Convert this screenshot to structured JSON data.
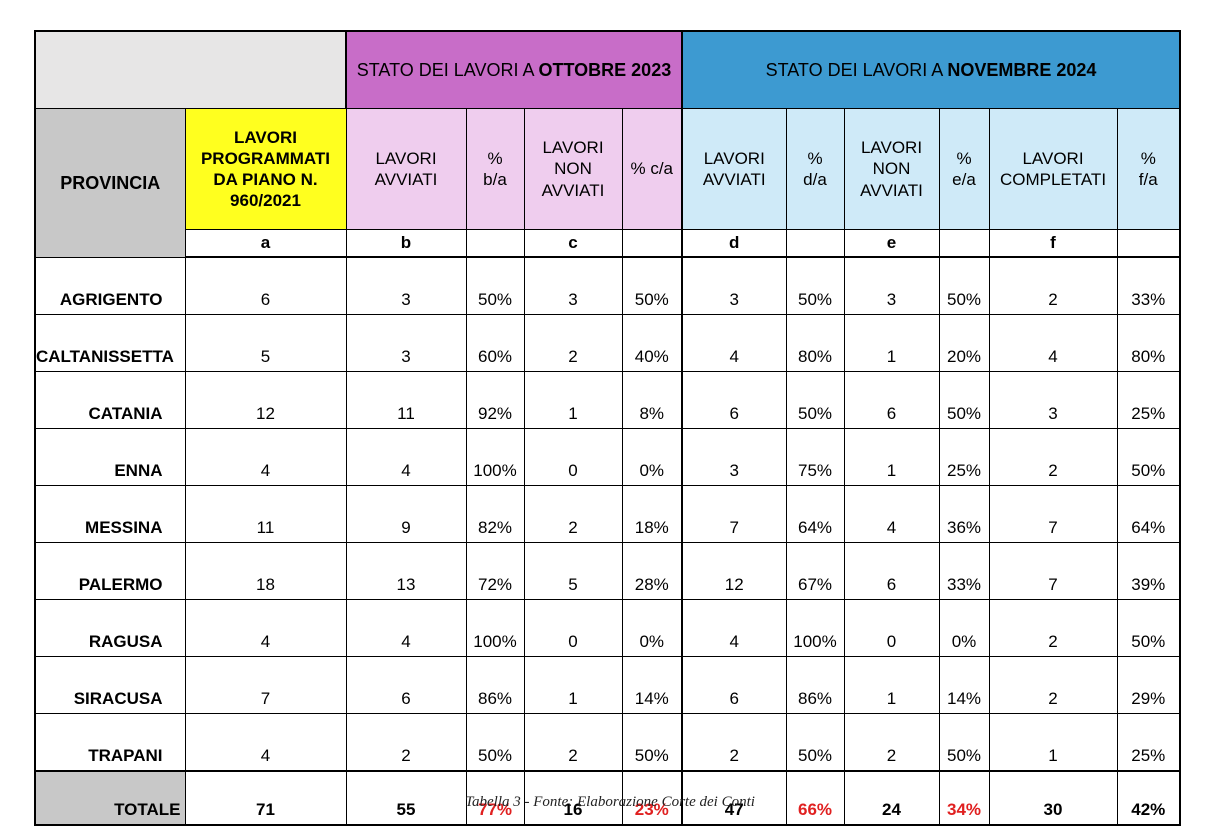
{
  "header": {
    "oct_prefix": "STATO DEI LAVORI A ",
    "oct_bold": "OTTOBRE 2023",
    "nov_prefix": "STATO DEI LAVORI A ",
    "nov_bold": "NOVEMBRE 2024"
  },
  "columns": {
    "provincia": "PROVINCIA",
    "lavori_programmati": [
      "LAVORI",
      "PROGRAMMATI",
      "DA PIANO N.",
      "960/2021"
    ],
    "oct_avviati": [
      "LAVORI",
      "AVVIATI"
    ],
    "oct_pct_ba": [
      "%",
      "b/a"
    ],
    "oct_non_avviati": [
      "LAVORI",
      "NON",
      "AVVIATI"
    ],
    "oct_pct_ca": "% c/a",
    "nov_avviati": [
      "LAVORI",
      "AVVIATI"
    ],
    "nov_pct_da": [
      "%",
      "d/a"
    ],
    "nov_non_avviati": [
      "LAVORI",
      "NON",
      "AVVIATI"
    ],
    "nov_pct_ea": [
      "%",
      "e/a"
    ],
    "nov_completati": [
      "LAVORI",
      "COMPLETATI"
    ],
    "nov_pct_fa": [
      "%",
      "f/a"
    ]
  },
  "letters": [
    "a",
    "b",
    "c",
    "d",
    "e",
    "f"
  ],
  "rows": [
    [
      "AGRIGENTO",
      "6",
      "3",
      "50%",
      "3",
      "50%",
      "3",
      "50%",
      "3",
      "50%",
      "2",
      "33%"
    ],
    [
      "CALTANISSETTA",
      "5",
      "3",
      "60%",
      "2",
      "40%",
      "4",
      "80%",
      "1",
      "20%",
      "4",
      "80%"
    ],
    [
      "CATANIA",
      "12",
      "11",
      "92%",
      "1",
      "8%",
      "6",
      "50%",
      "6",
      "50%",
      "3",
      "25%"
    ],
    [
      "ENNA",
      "4",
      "4",
      "100%",
      "0",
      "0%",
      "3",
      "75%",
      "1",
      "25%",
      "2",
      "50%"
    ],
    [
      "MESSINA",
      "11",
      "9",
      "82%",
      "2",
      "18%",
      "7",
      "64%",
      "4",
      "36%",
      "7",
      "64%"
    ],
    [
      "PALERMO",
      "18",
      "13",
      "72%",
      "5",
      "28%",
      "12",
      "67%",
      "6",
      "33%",
      "7",
      "39%"
    ],
    [
      "RAGUSA",
      "4",
      "4",
      "100%",
      "0",
      "0%",
      "4",
      "100%",
      "0",
      "0%",
      "2",
      "50%"
    ],
    [
      "SIRACUSA",
      "7",
      "6",
      "86%",
      "1",
      "14%",
      "6",
      "86%",
      "1",
      "14%",
      "2",
      "29%"
    ],
    [
      "TRAPANI",
      "4",
      "2",
      "50%",
      "2",
      "50%",
      "2",
      "50%",
      "2",
      "50%",
      "1",
      "25%"
    ]
  ],
  "total": [
    "TOTALE",
    "71",
    "55",
    "77%",
    "16",
    "23%",
    "47",
    "66%",
    "24",
    "34%",
    "30",
    "42%"
  ],
  "caption": "Tabella 3 - Fonte: Elaborazione Corte dei Conti",
  "colors": {
    "october_header": "#c86dc8",
    "november_header": "#3d9ad1",
    "programmati_header": "#ffff1f",
    "october_subheader": "#efcdee",
    "november_subheader": "#cfeaf8",
    "pct_avviati": "#fae4d8",
    "pct_non_avviati": "#dce8f6",
    "pct_completati": "#e3f1d8",
    "total_pct_text": "#e02020"
  }
}
